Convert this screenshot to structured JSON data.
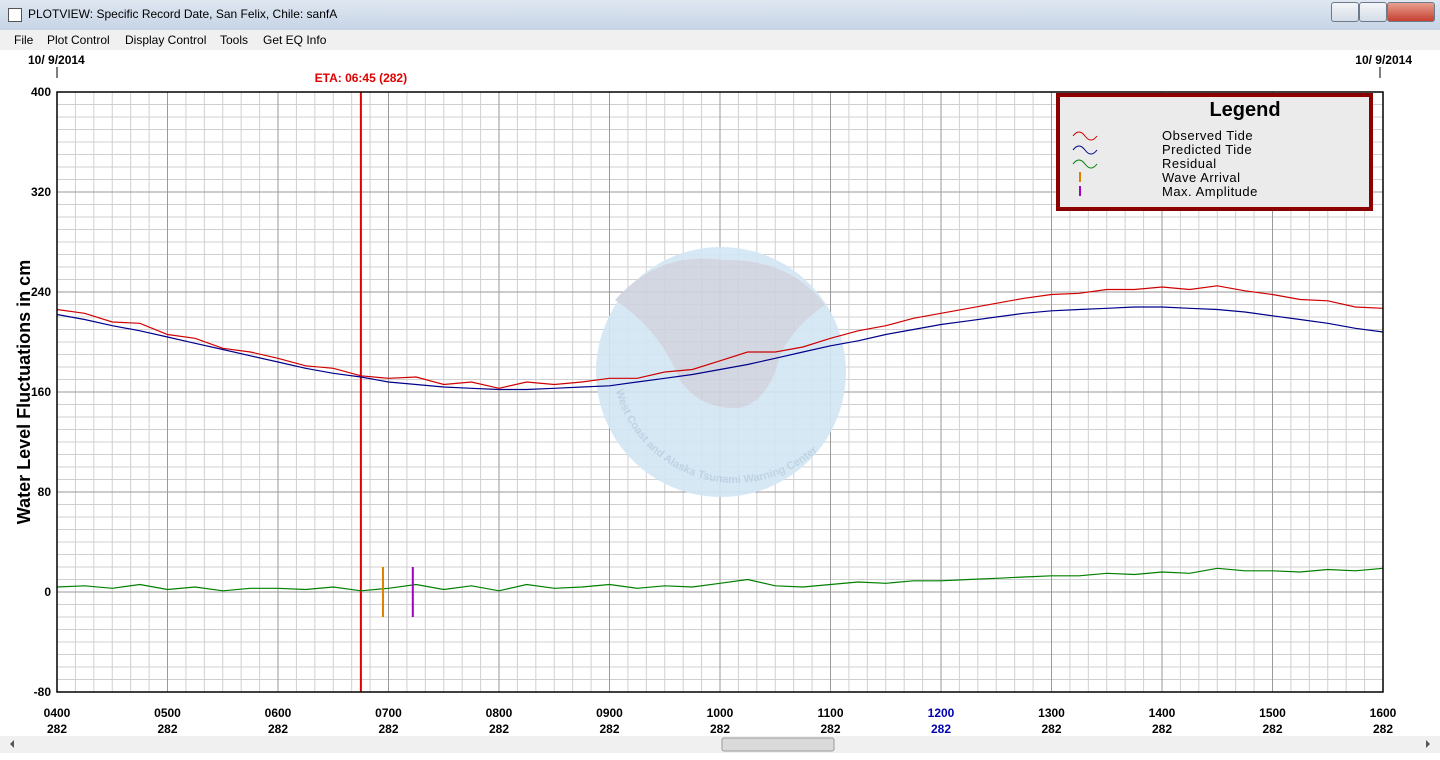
{
  "window": {
    "title": "PLOTVIEW: Specific Record Date, San Felix, Chile: sanfA"
  },
  "menu": [
    "File",
    "Plot Control",
    "Display Control",
    "Tools",
    "Get EQ Info"
  ],
  "chart_data": {
    "type": "line",
    "y_label": "Water Level Fluctuations in cm",
    "date_left": "10/ 9/2014",
    "date_right": "10/ 9/2014",
    "watermark": "West Coast and Alaska Tsunami Warning Center",
    "xlim": [
      4,
      16
    ],
    "ylim": [
      -80,
      400
    ],
    "xticks": [
      {
        "value": 4,
        "label": "0400",
        "sublabel": "282"
      },
      {
        "value": 5,
        "label": "0500",
        "sublabel": "282"
      },
      {
        "value": 6,
        "label": "0600",
        "sublabel": "282"
      },
      {
        "value": 7,
        "label": "0700",
        "sublabel": "282"
      },
      {
        "value": 8,
        "label": "0800",
        "sublabel": "282"
      },
      {
        "value": 9,
        "label": "0900",
        "sublabel": "282"
      },
      {
        "value": 10,
        "label": "1000",
        "sublabel": "282"
      },
      {
        "value": 11,
        "label": "1100",
        "sublabel": "282"
      },
      {
        "value": 12,
        "label": "1200",
        "sublabel": "282",
        "color": "#0000b0"
      },
      {
        "value": 13,
        "label": "1300",
        "sublabel": "282"
      },
      {
        "value": 14,
        "label": "1400",
        "sublabel": "282"
      },
      {
        "value": 15,
        "label": "1500",
        "sublabel": "282"
      },
      {
        "value": 16,
        "label": "1600",
        "sublabel": "282"
      }
    ],
    "yticks": [
      -80,
      0,
      80,
      160,
      240,
      320,
      400
    ],
    "grid": true,
    "x_minor_per_major": 6,
    "y_minor_per_major": 8,
    "x": [
      4,
      4.25,
      4.5,
      4.75,
      5,
      5.25,
      5.5,
      5.75,
      6,
      6.25,
      6.5,
      6.75,
      7,
      7.25,
      7.5,
      7.75,
      8,
      8.25,
      8.5,
      8.75,
      9,
      9.25,
      9.5,
      9.75,
      10,
      10.25,
      10.5,
      10.75,
      11,
      11.25,
      11.5,
      11.75,
      12,
      12.25,
      12.5,
      12.75,
      13,
      13.25,
      13.5,
      13.75,
      14,
      14.25,
      14.5,
      14.75,
      15,
      15.25,
      15.5,
      15.75,
      16
    ],
    "series": [
      {
        "name": "Observed Tide",
        "color": "#d00000",
        "values": [
          226,
          223,
          216,
          215,
          206,
          203,
          195,
          192,
          187,
          181,
          179,
          173,
          171,
          172,
          166,
          168,
          163,
          168,
          166,
          168,
          171,
          171,
          176,
          178,
          185,
          192,
          192,
          196,
          203,
          209,
          213,
          219,
          223,
          227,
          231,
          235,
          238,
          239,
          242,
          242,
          244,
          242,
          245,
          241,
          238,
          234,
          233,
          228,
          227
        ]
      },
      {
        "name": "Predicted Tide",
        "color": "#00008b",
        "values": [
          222,
          218,
          213,
          209,
          204,
          199,
          194,
          189,
          184,
          179,
          175,
          172,
          168,
          166,
          164,
          163,
          162,
          162,
          163,
          164,
          165,
          168,
          171,
          174,
          178,
          182,
          187,
          192,
          197,
          201,
          206,
          210,
          214,
          217,
          220,
          223,
          225,
          226,
          227,
          228,
          228,
          227,
          226,
          224,
          221,
          218,
          215,
          211,
          208
        ]
      },
      {
        "name": "Residual",
        "color": "#008000",
        "values": [
          4,
          5,
          3,
          6,
          2,
          4,
          1,
          3,
          3,
          2,
          4,
          1,
          3,
          6,
          2,
          5,
          1,
          6,
          3,
          4,
          6,
          3,
          5,
          4,
          7,
          10,
          5,
          4,
          6,
          8,
          7,
          9,
          9,
          10,
          11,
          12,
          13,
          13,
          15,
          14,
          16,
          15,
          19,
          17,
          17,
          16,
          18,
          17,
          19
        ]
      }
    ],
    "markers": [
      {
        "name": "Wave Arrival",
        "color": "#e08000",
        "x": 6.95,
        "low": -20,
        "high": 20
      },
      {
        "name": "Max. Amplitude",
        "color": "#a000c0",
        "x": 7.22,
        "low": -20,
        "high": 20
      }
    ],
    "eta": {
      "label": "ETA: 06:45 (282)",
      "x": 6.75,
      "color": "#e00000"
    },
    "legend": {
      "title": "Legend",
      "position": "upper right"
    }
  }
}
